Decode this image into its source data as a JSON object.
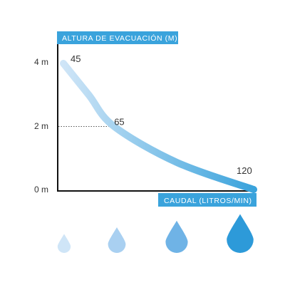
{
  "chart_data": {
    "type": "line",
    "title": "",
    "ylabel": "ALTURA DE EVACUACIÓN (M)",
    "xlabel": "CAUDAL (LITROS/MIN)",
    "yticks": [
      "0 m",
      "2 m",
      "4 m"
    ],
    "ytick_values": [
      0,
      2,
      4
    ],
    "ylim": [
      0,
      4.5
    ],
    "xlim": [
      45,
      120
    ],
    "series": [
      {
        "points": [
          {
            "x": 45,
            "y": 4.0
          },
          {
            "x": 55,
            "y": 3.0
          },
          {
            "x": 65,
            "y": 2.0
          },
          {
            "x": 90,
            "y": 0.85
          },
          {
            "x": 120,
            "y": 0.0
          }
        ]
      }
    ],
    "data_labels": [
      {
        "text": "45",
        "x": 45,
        "y": 4.0
      },
      {
        "text": "65",
        "x": 65,
        "y": 2.0
      },
      {
        "text": "120",
        "x": 120,
        "y": 0.0
      }
    ],
    "reference_line": {
      "x": 65,
      "y": 2.0,
      "style": "dotted"
    },
    "grid": false
  },
  "drops": {
    "count": 4,
    "colors": [
      "#cfe5f7",
      "#a9d0f1",
      "#6fb3e6",
      "#2d9ad9"
    ],
    "levels": [
      1,
      2,
      3,
      4
    ]
  },
  "colors": {
    "accent": "#3aa3dc",
    "line_start": "#cfe5f7",
    "line_end": "#3aa3dc",
    "axis": "#111111"
  }
}
